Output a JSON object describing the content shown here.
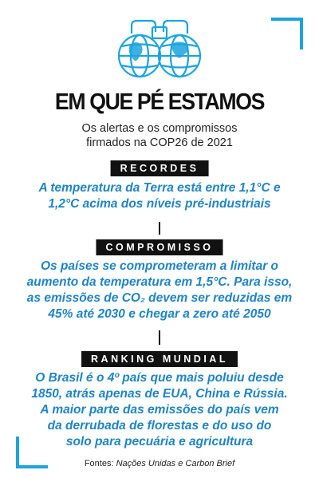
{
  "header": {
    "title": "EM QUE PÉ ESTAMOS",
    "subtitle_line1": "Os alertas e os compromissos",
    "subtitle_line2": "firmados na COP26 de 2021"
  },
  "sections": [
    {
      "label": "RECORDES",
      "lines": [
        "A temperatura da Terra está entre 1,1°C e",
        "1,2°C acima dos níveis pré-industriais"
      ]
    },
    {
      "label": "COMPROMISSO",
      "lines": [
        "Os países se comprometeram a limitar o",
        "aumento da temperatura em 1,5°C. Para isso,",
        "as emissões de CO₂ devem ser reduzidas em",
        "45% até 2030 e chegar a zero até 2050"
      ]
    },
    {
      "label": "RANKING MUNDIAL",
      "lines": [
        "O Brasil é o 4º país que mais poluiu desde",
        "1850, atrás apenas de EUA, China e Rússia.",
        "A maior parte das emissões do país vem",
        "da derrubada de florestas e do uso do",
        "solo para pecuária e agricultura"
      ]
    }
  ],
  "footer": {
    "sources_prefix": "Fontes:",
    "sources_text": "Nações Unidas e Carbon Brief"
  },
  "colors": {
    "accent": "#1ba4de",
    "body_text": "#1f84c6",
    "label_bg": "#111111"
  },
  "icons": {
    "logo": "binoculars-globe-icon"
  }
}
